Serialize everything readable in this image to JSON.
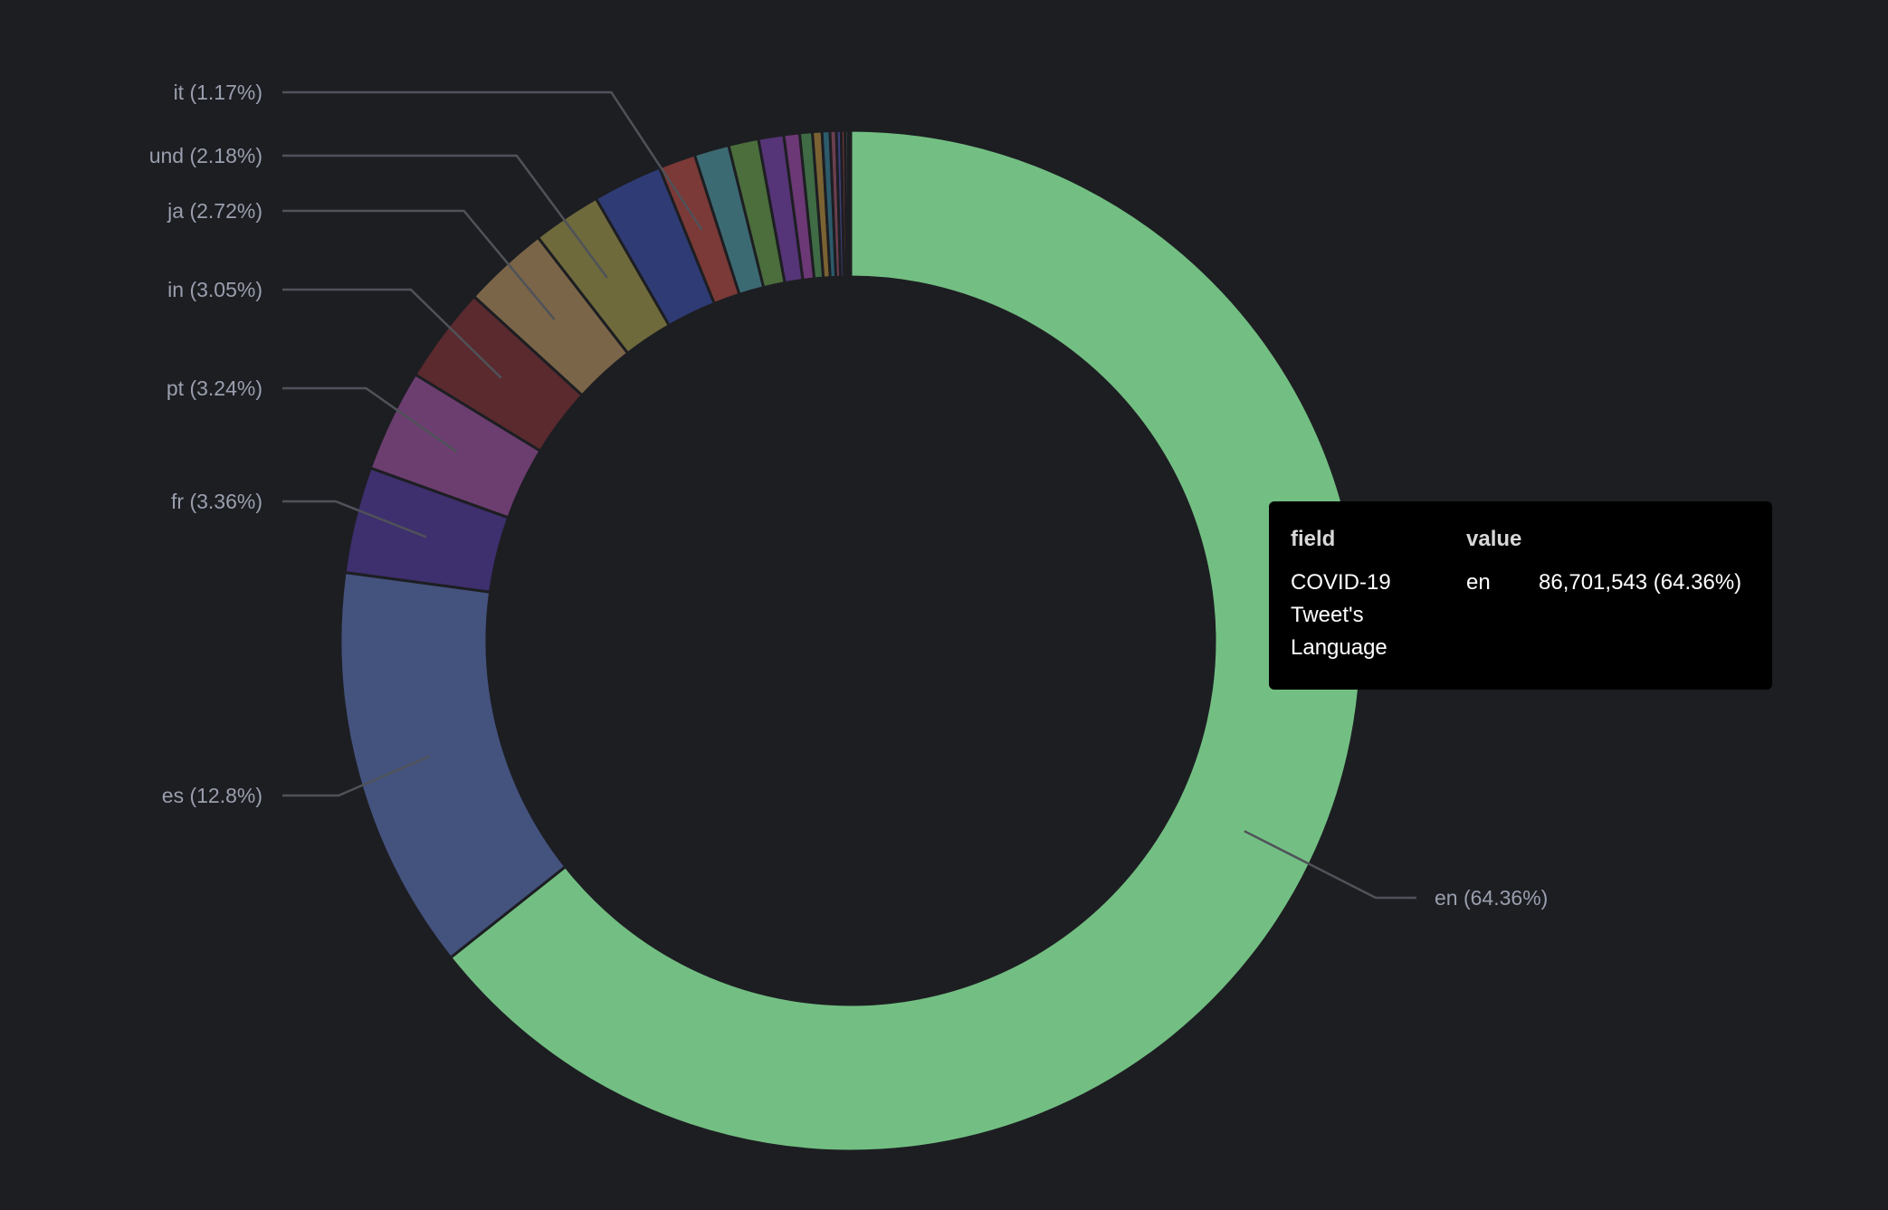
{
  "chart_data": {
    "type": "pie",
    "donut": true,
    "slices": [
      {
        "label": "en (64.36%)",
        "name": "en",
        "percent": 64.36,
        "color": "#73bf83",
        "labeled": true
      },
      {
        "label": "es (12.8%)",
        "name": "es",
        "percent": 12.8,
        "color": "#44527e",
        "labeled": true
      },
      {
        "label": "fr (3.36%)",
        "name": "fr",
        "percent": 3.36,
        "color": "#3e2f6e",
        "labeled": true
      },
      {
        "label": "pt (3.24%)",
        "name": "pt",
        "percent": 3.24,
        "color": "#6c3e70",
        "labeled": true
      },
      {
        "label": "in (3.05%)",
        "name": "in",
        "percent": 3.05,
        "color": "#5a2a2e",
        "labeled": true
      },
      {
        "label": "ja (2.72%)",
        "name": "ja",
        "percent": 2.72,
        "color": "#7a6548",
        "labeled": true
      },
      {
        "label": "und (2.18%)",
        "name": "und",
        "percent": 2.18,
        "color": "#6e6a3c",
        "labeled": true
      },
      {
        "label": "",
        "name": "",
        "percent": 2.2,
        "color": "#2f3b74",
        "labeled": false
      },
      {
        "label": "it (1.17%)",
        "name": "it",
        "percent": 1.17,
        "color": "#7b3a37",
        "labeled": true
      },
      {
        "label": "",
        "name": "",
        "percent": 1.1,
        "color": "#3c6a73",
        "labeled": false
      },
      {
        "label": "",
        "name": "",
        "percent": 0.95,
        "color": "#4b6e3c",
        "labeled": false
      },
      {
        "label": "",
        "name": "",
        "percent": 0.8,
        "color": "#553477",
        "labeled": false
      },
      {
        "label": "",
        "name": "",
        "percent": 0.5,
        "color": "#6c3875",
        "labeled": false
      },
      {
        "label": "",
        "name": "",
        "percent": 0.4,
        "color": "#3f6b45",
        "labeled": false
      },
      {
        "label": "",
        "name": "",
        "percent": 0.3,
        "color": "#7a6232",
        "labeled": false
      },
      {
        "label": "",
        "name": "",
        "percent": 0.25,
        "color": "#2c5b6b",
        "labeled": false
      },
      {
        "label": "",
        "name": "",
        "percent": 0.2,
        "color": "#6b3f4f",
        "labeled": false
      },
      {
        "label": "",
        "name": "",
        "percent": 0.15,
        "color": "#3c3f7a",
        "labeled": false
      },
      {
        "label": "",
        "name": "",
        "percent": 0.12,
        "color": "#7a3a3a",
        "labeled": false
      },
      {
        "label": "",
        "name": "",
        "percent": 0.1,
        "color": "#4a6b6b",
        "labeled": false
      },
      {
        "label": "",
        "name": "",
        "percent": 0.08,
        "color": "#5e5e2f",
        "labeled": false
      }
    ],
    "legend": "none",
    "grid": false
  },
  "tooltip": {
    "header_field": "field",
    "header_value": "value",
    "field_line1": "COVID-19",
    "field_line2": "Tweet's",
    "field_line3": "Language",
    "value_name": "en",
    "value_amount": "86,701,543 (64.36%)"
  }
}
